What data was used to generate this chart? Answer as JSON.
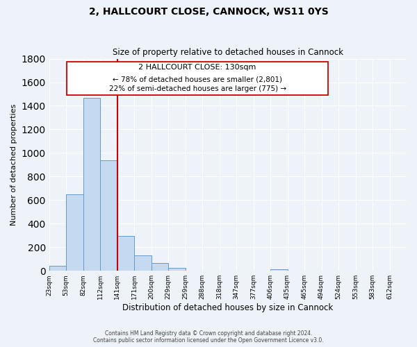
{
  "title1": "2, HALLCOURT CLOSE, CANNOCK, WS11 0YS",
  "title2": "Size of property relative to detached houses in Cannock",
  "xlabel": "Distribution of detached houses by size in Cannock",
  "ylabel": "Number of detached properties",
  "bin_labels": [
    "23sqm",
    "53sqm",
    "82sqm",
    "112sqm",
    "141sqm",
    "171sqm",
    "200sqm",
    "229sqm",
    "259sqm",
    "288sqm",
    "318sqm",
    "347sqm",
    "377sqm",
    "406sqm",
    "435sqm",
    "465sqm",
    "494sqm",
    "524sqm",
    "553sqm",
    "583sqm",
    "612sqm"
  ],
  "bar_values": [
    40,
    650,
    1470,
    935,
    295,
    130,
    65,
    22,
    0,
    0,
    0,
    0,
    0,
    15,
    0,
    0,
    0,
    0,
    0,
    0,
    0
  ],
  "bar_color": "#c5d9f1",
  "bar_edge_color": "#6699cc",
  "ylim": [
    0,
    1800
  ],
  "yticks": [
    0,
    200,
    400,
    600,
    800,
    1000,
    1200,
    1400,
    1600,
    1800
  ],
  "vline_x": 4,
  "vline_color": "#cc0000",
  "annotation_title": "2 HALLCOURT CLOSE: 130sqm",
  "annotation_line1": "← 78% of detached houses are smaller (2,801)",
  "annotation_line2": "22% of semi-detached houses are larger (775) →",
  "annotation_box_color": "#ffffff",
  "annotation_box_edge_color": "#cc0000",
  "footer1": "Contains HM Land Registry data © Crown copyright and database right 2024.",
  "footer2": "Contains public sector information licensed under the Open Government Licence v3.0.",
  "background_color": "#eef2f9",
  "grid_color": "#ffffff"
}
